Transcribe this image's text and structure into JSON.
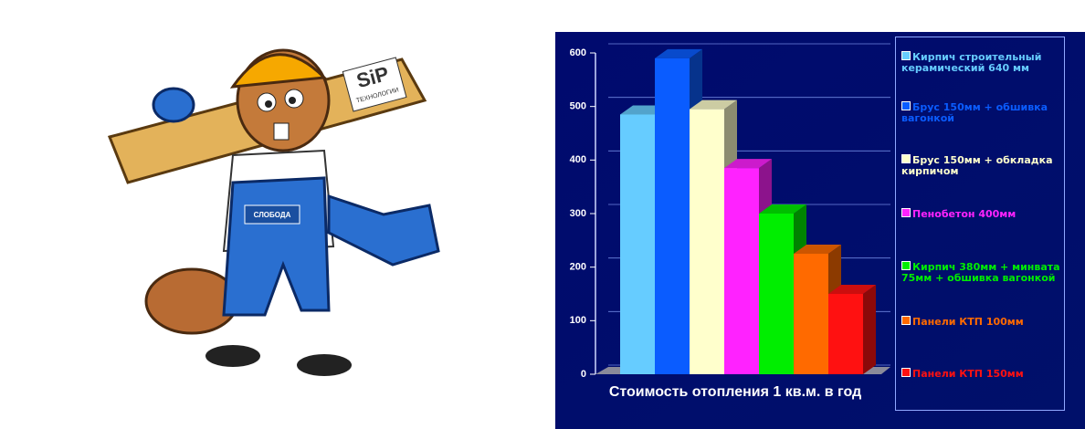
{
  "illustration": {
    "board_text": "SiP",
    "board_subtext": "ТЕХНОЛОГИИ",
    "badge_text": "СЛОБОДА"
  },
  "chart_data": {
    "type": "bar3d",
    "title": "Стоимость отопления 1 кв.м. в год",
    "categories": [
      null
    ],
    "series": [
      {
        "name": "Кирпич строительный керамический 640 мм",
        "color": "#66ccff",
        "values": [
          485
        ]
      },
      {
        "name": "Брус 150мм + обшивка вагонкой",
        "color": "#0a5cff",
        "values": [
          590
        ]
      },
      {
        "name": "Брус 150мм + обкладка кирпичом",
        "color": "#ffffcc",
        "values": [
          495
        ]
      },
      {
        "name": "Пенобетон 400мм",
        "color": "#ff22ff",
        "values": [
          385
        ]
      },
      {
        "name": "Кирпич 380мм + минвата 75мм + обшивка вагонкой",
        "color": "#00ee00",
        "values": [
          300
        ]
      },
      {
        "name": "Панели КТП 100мм",
        "color": "#ff6a00",
        "values": [
          225
        ]
      },
      {
        "name": "Панели КТП 150мм",
        "color": "#ff1111",
        "values": [
          150
        ]
      }
    ],
    "ylim": [
      0,
      600
    ],
    "yticks": [
      0,
      100,
      200,
      300,
      400,
      500,
      600
    ],
    "grid": true
  }
}
